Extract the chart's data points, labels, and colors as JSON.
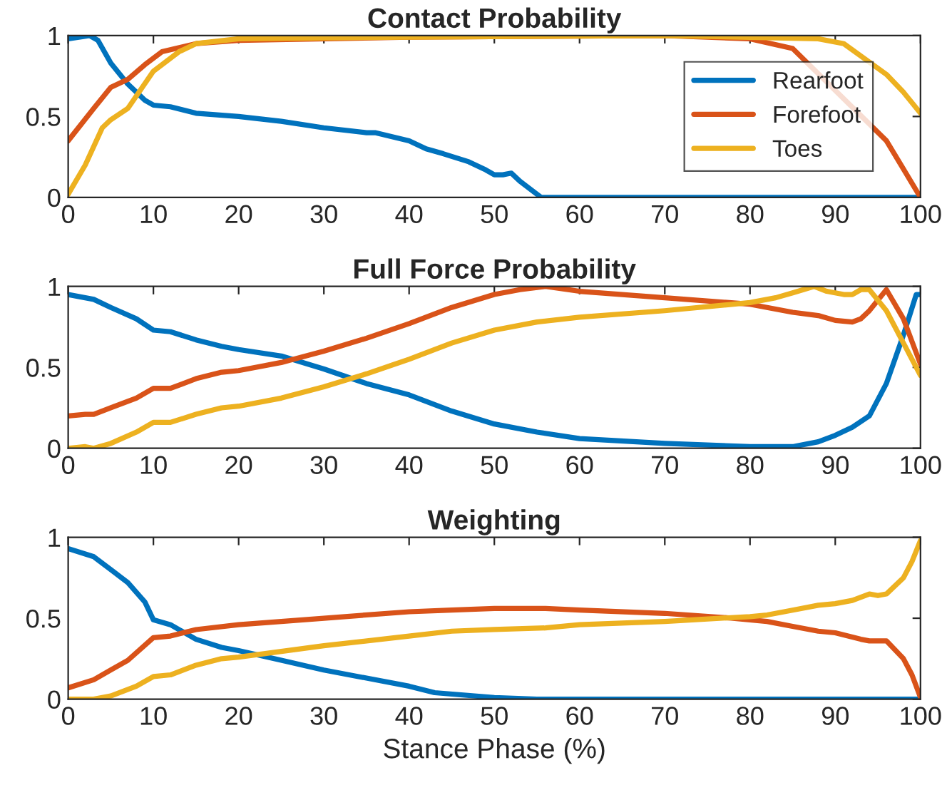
{
  "chart_data": [
    {
      "type": "line",
      "title": "Contact Probability",
      "xlim": [
        0,
        100
      ],
      "ylim": [
        0,
        1
      ],
      "xticks": [
        0,
        10,
        20,
        30,
        40,
        50,
        60,
        70,
        80,
        90,
        100
      ],
      "yticks": [
        0,
        0.5,
        1
      ],
      "grid": false,
      "legend": "right",
      "marker": "none",
      "line_style": "solid",
      "series": [
        {
          "name": "Rearfoot",
          "color": "#0072bd",
          "x": [
            0,
            2.5,
            3.5,
            5,
            7,
            9,
            10,
            12,
            15,
            20,
            25,
            30,
            35,
            36,
            40,
            42,
            44,
            47,
            49,
            50,
            51,
            52,
            53,
            55,
            55.5,
            100
          ],
          "values": [
            0.98,
            1.0,
            0.97,
            0.83,
            0.7,
            0.6,
            0.57,
            0.56,
            0.52,
            0.5,
            0.47,
            0.43,
            0.4,
            0.4,
            0.35,
            0.3,
            0.27,
            0.22,
            0.17,
            0.14,
            0.14,
            0.15,
            0.1,
            0.02,
            0,
            0
          ]
        },
        {
          "name": "Forefoot",
          "color": "#d95319",
          "x": [
            0,
            3,
            5,
            7,
            9,
            11,
            15,
            20,
            40,
            70,
            80,
            85,
            90,
            93,
            96,
            100
          ],
          "values": [
            0.35,
            0.55,
            0.68,
            0.73,
            0.82,
            0.9,
            0.95,
            0.97,
            0.99,
            1.0,
            0.98,
            0.92,
            null,
            null,
            0.35,
            0
          ]
        },
        {
          "name": "Toes",
          "color": "#edb120",
          "x": [
            0,
            2,
            4,
            5,
            7,
            10,
            13,
            15,
            20,
            40,
            70,
            88,
            91,
            96,
            98,
            100
          ],
          "values": [
            0.02,
            0.2,
            0.43,
            0.48,
            0.55,
            0.78,
            0.9,
            0.95,
            0.98,
            0.99,
            1.0,
            0.98,
            0.95,
            0.76,
            0.65,
            0.52
          ]
        }
      ]
    },
    {
      "type": "line",
      "title": "Full Force Probability",
      "xlim": [
        0,
        100
      ],
      "ylim": [
        0,
        1
      ],
      "xticks": [
        0,
        10,
        20,
        30,
        40,
        50,
        60,
        70,
        80,
        90,
        100
      ],
      "yticks": [
        0,
        0.5,
        1
      ],
      "grid": false,
      "marker": "none",
      "line_style": "solid",
      "series": [
        {
          "color": "#0072bd",
          "x": [
            0,
            2,
            3,
            5,
            8,
            10,
            12,
            15,
            18,
            20,
            25,
            30,
            35,
            40,
            45,
            50,
            55,
            60,
            70,
            80,
            85,
            88,
            90,
            92,
            94,
            96,
            98,
            99.5,
            100
          ],
          "values": [
            0.95,
            0.93,
            0.92,
            0.87,
            0.8,
            0.73,
            0.72,
            0.67,
            0.63,
            0.61,
            0.57,
            0.49,
            0.4,
            0.33,
            0.23,
            0.15,
            0.1,
            0.06,
            0.03,
            0.01,
            0.01,
            0.04,
            0.08,
            0.13,
            0.2,
            0.4,
            0.7,
            0.95,
            0.95
          ]
        },
        {
          "color": "#d95319",
          "x": [
            0,
            2,
            3,
            5,
            8,
            10,
            12,
            15,
            18,
            20,
            25,
            30,
            35,
            40,
            45,
            50,
            53,
            56,
            60,
            70,
            80,
            85,
            88,
            90,
            92,
            93,
            94,
            96,
            98,
            100
          ],
          "values": [
            0.2,
            0.21,
            0.21,
            0.25,
            0.31,
            0.37,
            0.37,
            0.43,
            0.47,
            0.48,
            0.53,
            0.6,
            0.68,
            0.77,
            0.87,
            0.95,
            0.98,
            1.0,
            0.97,
            0.93,
            0.89,
            0.84,
            0.82,
            0.79,
            0.78,
            0.8,
            0.85,
            0.98,
            0.8,
            0.52
          ]
        },
        {
          "color": "#edb120",
          "x": [
            0,
            2,
            3,
            5,
            8,
            10,
            12,
            15,
            18,
            20,
            25,
            30,
            35,
            40,
            45,
            50,
            55,
            60,
            70,
            80,
            83,
            85,
            87.5,
            89,
            91,
            92,
            93,
            94,
            96,
            98,
            100
          ],
          "values": [
            0.0,
            0.01,
            0.0,
            0.03,
            0.1,
            0.16,
            0.16,
            0.21,
            0.25,
            0.26,
            0.31,
            0.38,
            0.46,
            0.55,
            0.65,
            0.73,
            0.78,
            0.81,
            0.85,
            0.9,
            0.93,
            0.96,
            1.0,
            0.97,
            0.95,
            0.95,
            0.98,
            0.98,
            0.85,
            0.65,
            0.45
          ]
        }
      ]
    },
    {
      "type": "line",
      "title": "Weighting",
      "xlabel": "Stance Phase (%)",
      "xlim": [
        0,
        100
      ],
      "ylim": [
        0,
        1
      ],
      "xticks": [
        0,
        10,
        20,
        30,
        40,
        50,
        60,
        70,
        80,
        90,
        100
      ],
      "yticks": [
        0,
        0.5,
        1
      ],
      "grid": false,
      "marker": "none",
      "line_style": "solid",
      "series": [
        {
          "color": "#0072bd",
          "x": [
            0,
            3,
            5,
            7,
            9,
            10,
            12,
            15,
            18,
            20,
            25,
            30,
            35,
            40,
            43,
            50,
            55,
            100
          ],
          "values": [
            0.93,
            0.88,
            0.8,
            0.72,
            0.6,
            0.49,
            0.46,
            0.37,
            0.32,
            0.3,
            0.24,
            0.18,
            0.13,
            0.08,
            0.04,
            0.01,
            0,
            0
          ]
        },
        {
          "color": "#d95319",
          "x": [
            0,
            3,
            5,
            7,
            10,
            12,
            15,
            20,
            30,
            40,
            45,
            50,
            56,
            60,
            70,
            78,
            82,
            85,
            88,
            90,
            93,
            94,
            95,
            96,
            98,
            99,
            100
          ],
          "values": [
            0.07,
            0.12,
            0.18,
            0.24,
            0.38,
            0.39,
            0.43,
            0.46,
            0.5,
            0.54,
            0.55,
            0.56,
            0.56,
            0.55,
            0.53,
            0.5,
            0.48,
            0.45,
            0.42,
            0.41,
            0.37,
            0.36,
            0.36,
            0.36,
            0.25,
            0.15,
            0.01
          ]
        },
        {
          "color": "#edb120",
          "x": [
            0,
            3,
            5,
            8,
            10,
            12,
            15,
            18,
            20,
            30,
            40,
            45,
            50,
            56,
            60,
            70,
            80,
            82,
            85,
            88,
            90,
            92,
            94,
            95,
            96,
            98,
            99,
            100
          ],
          "values": [
            0,
            0,
            0.02,
            0.08,
            0.14,
            0.15,
            0.21,
            0.25,
            0.26,
            0.33,
            0.39,
            0.42,
            0.43,
            0.44,
            0.46,
            0.48,
            0.51,
            0.52,
            0.55,
            0.58,
            0.59,
            0.61,
            0.65,
            0.64,
            0.65,
            0.75,
            0.85,
            0.98
          ]
        }
      ]
    }
  ]
}
